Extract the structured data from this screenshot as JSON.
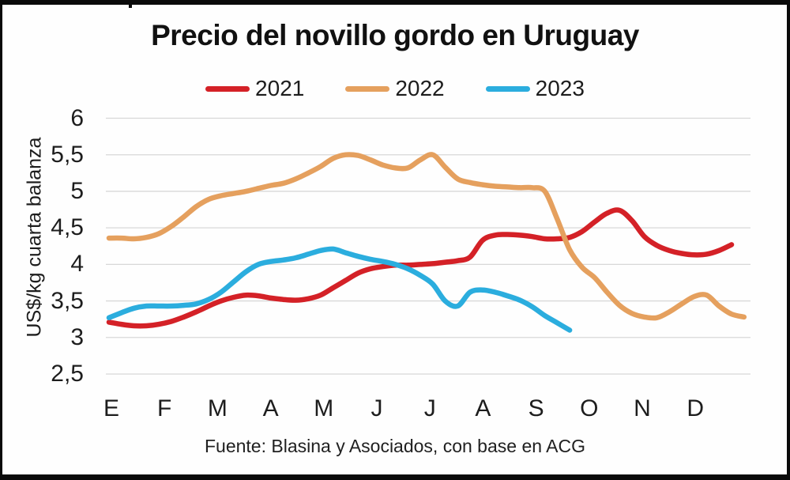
{
  "title": "Precio del novillo gordo en Uruguay",
  "source_caption": "Fuente: Blasina y Asociados, con base en ACG",
  "colors": {
    "series_2021": "#d42127",
    "series_2022": "#e5a express05e",
    "series_2023": "#2badde",
    "gridline": "#d8d8d8",
    "text": "#1d1d1d",
    "frame": "#0a0a0a",
    "background": "#fefefe"
  },
  "chart_data": {
    "type": "line",
    "title": "Precio del novillo gordo en Uruguay",
    "ylabel": "US$/kg cuarta balanza",
    "xlabel": "",
    "ylim": [
      2.5,
      6
    ],
    "grid": "horizontal-only",
    "legend_position": "top-center",
    "x_unit": "weeks (Jan–Dec)",
    "categories": [
      "E",
      "F",
      "M",
      "A",
      "M",
      "J",
      "J",
      "A",
      "S",
      "O",
      "N",
      "D"
    ],
    "y_tick_values": [
      6,
      5.5,
      5,
      4.5,
      4,
      3.5,
      3,
      2.5
    ],
    "y_tick_labels": [
      "6",
      "5,5",
      "5",
      "4,5",
      "4",
      "3,5",
      "3",
      "2,5"
    ],
    "series": [
      {
        "name": "2021",
        "color": "#d42127",
        "values": [
          3.21,
          3.18,
          3.16,
          3.16,
          3.18,
          3.22,
          3.28,
          3.35,
          3.43,
          3.5,
          3.55,
          3.58,
          3.57,
          3.54,
          3.52,
          3.51,
          3.53,
          3.58,
          3.68,
          3.78,
          3.88,
          3.94,
          3.97,
          3.99,
          3.99,
          4.0,
          4.01,
          4.03,
          4.05,
          4.1,
          4.33,
          4.4,
          4.41,
          4.4,
          4.38,
          4.35,
          4.35,
          4.37,
          4.45,
          4.58,
          4.7,
          4.74,
          4.6,
          4.38,
          4.26,
          4.19,
          4.15,
          4.13,
          4.14,
          4.19,
          4.27
        ]
      },
      {
        "name": "2022",
        "color": "#e5a05e",
        "values": [
          4.36,
          4.36,
          4.35,
          4.37,
          4.42,
          4.52,
          4.65,
          4.79,
          4.89,
          4.94,
          4.97,
          5.0,
          5.04,
          5.08,
          5.11,
          5.17,
          5.25,
          5.34,
          5.45,
          5.5,
          5.49,
          5.43,
          5.36,
          5.32,
          5.32,
          5.43,
          5.5,
          5.33,
          5.17,
          5.12,
          5.09,
          5.07,
          5.06,
          5.05,
          5.05,
          5.0,
          4.62,
          4.2,
          3.96,
          3.82,
          3.62,
          3.44,
          3.33,
          3.28,
          3.27,
          3.35,
          3.46,
          3.56,
          3.58,
          3.43,
          3.32,
          3.28
        ]
      },
      {
        "name": "2023",
        "color": "#2badde",
        "values": [
          3.27,
          3.34,
          3.4,
          3.43,
          3.43,
          3.43,
          3.44,
          3.46,
          3.52,
          3.62,
          3.76,
          3.9,
          4.0,
          4.04,
          4.06,
          4.09,
          4.14,
          4.19,
          4.21,
          4.16,
          4.11,
          4.07,
          4.04,
          4.0,
          3.94,
          3.85,
          3.73,
          3.5,
          3.43,
          3.62,
          3.65,
          3.62,
          3.57,
          3.51,
          3.42,
          3.3,
          3.2,
          3.1
        ]
      }
    ]
  }
}
